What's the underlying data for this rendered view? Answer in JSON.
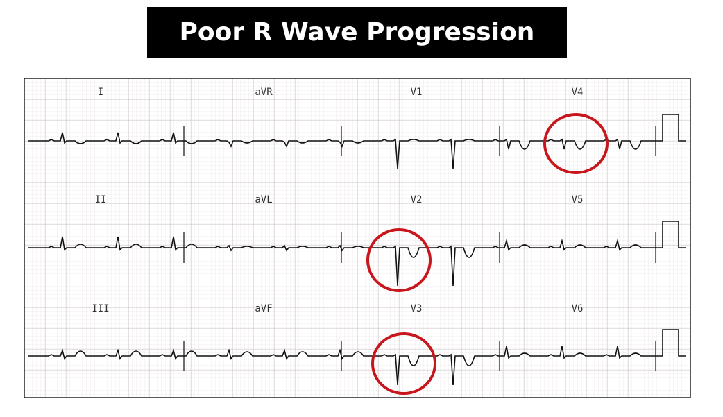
{
  "header": {
    "title": "Poor R Wave Progression"
  },
  "leads": [
    "I",
    "aVR",
    "V1",
    "V4",
    "II",
    "aVL",
    "V2",
    "V5",
    "III",
    "aVF",
    "V3",
    "V6"
  ]
}
